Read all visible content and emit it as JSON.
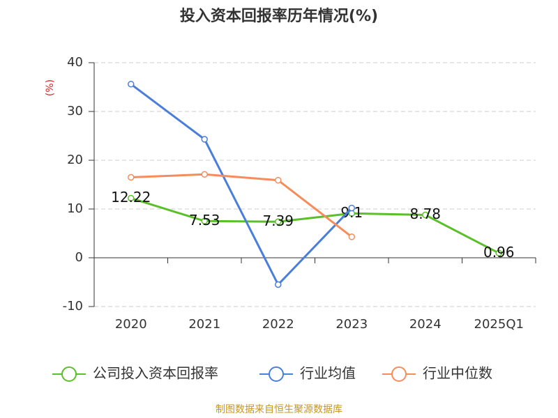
{
  "chart_data": {
    "type": "line",
    "title": "投入资本回报率历年情况(%)",
    "y_label": "(%)",
    "categories": [
      "2020",
      "2021",
      "2022",
      "2023",
      "2024",
      "2025Q1"
    ],
    "series": [
      {
        "name": "公司投入资本回报率",
        "color": "#5bbf2a",
        "values": [
          12.22,
          7.53,
          7.39,
          9.1,
          8.78,
          0.96
        ],
        "data_labels": true
      },
      {
        "name": "行业均值",
        "color": "#4a7edb",
        "values": [
          35.6,
          24.3,
          -5.5,
          10.2,
          null,
          null
        ]
      },
      {
        "name": "行业中位数",
        "color": "#f68c5b",
        "values": [
          16.5,
          17.1,
          15.9,
          4.3,
          null,
          null
        ]
      }
    ],
    "ylim": [
      -10,
      40
    ],
    "yticks": [
      -10,
      0,
      10,
      20,
      30,
      40
    ],
    "grid": true,
    "source": "制图数据来自恒生聚源数据库"
  }
}
